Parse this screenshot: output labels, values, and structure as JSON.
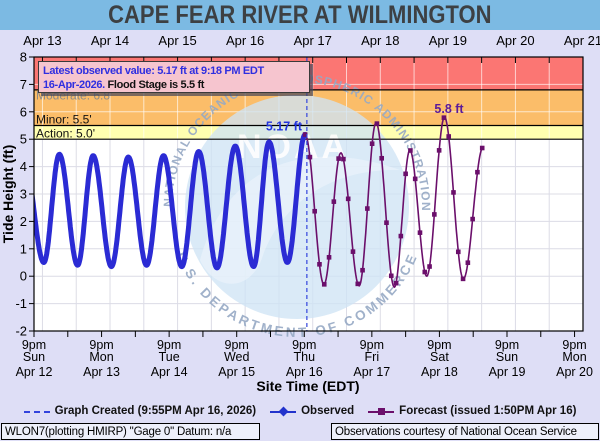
{
  "title": "CAPE FEAR RIVER AT WILMINGTON",
  "annotation": {
    "line1": "Latest observed value: 5.17 ft at 9:18 PM EDT",
    "line2_date": "16-Apr-2026.",
    "line2_flood": " Flood Stage is 5.5 ft"
  },
  "flood_labels": {
    "moderate": "Moderate: 6.8'",
    "minor": "Minor: 5.5'",
    "action": "Action: 5.0'"
  },
  "value_labels": {
    "observed_latest": "5.17 ft",
    "forecast_crest": "5.8 ft"
  },
  "axes": {
    "ylabel": "Tide Height (ft)",
    "xlabel": "Site Time (EDT)",
    "y_ticks": [
      -2,
      -1,
      0,
      1,
      2,
      3,
      4,
      5,
      6,
      7,
      8
    ],
    "top_dates": [
      "Apr 13",
      "Apr 14",
      "Apr 15",
      "Apr 16",
      "Apr 17",
      "Apr 18",
      "Apr 19",
      "Apr 20",
      "Apr 21"
    ],
    "bottom_ticks": [
      {
        "time": "9pm",
        "day": "Sun",
        "date": "Apr 12"
      },
      {
        "time": "9pm",
        "day": "Mon",
        "date": "Apr 13"
      },
      {
        "time": "9pm",
        "day": "Tue",
        "date": "Apr 14"
      },
      {
        "time": "9pm",
        "day": "Wed",
        "date": "Apr 15"
      },
      {
        "time": "9pm",
        "day": "Thu",
        "date": "Apr 16"
      },
      {
        "time": "9pm",
        "day": "Fri",
        "date": "Apr 17"
      },
      {
        "time": "9pm",
        "day": "Sat",
        "date": "Apr 18"
      },
      {
        "time": "9pm",
        "day": "Sun",
        "date": "Apr 19"
      },
      {
        "time": "9pm",
        "day": "Mon",
        "date": "Apr 20"
      }
    ]
  },
  "legend": {
    "created": "Graph Created (9:55PM Apr 16, 2026)",
    "observed": "Observed",
    "forecast": "Forecast (issued 1:50PM Apr 16)"
  },
  "footer": {
    "left": "WLON7(plotting HMIRP) \"Gage 0\" Datum: n/a",
    "right": "Observations courtesy of National Ocean Service"
  },
  "watermark": {
    "arc_top": "NATIONAL OCEANIC AND ATMOSPHERIC ADMINISTRATION",
    "arc_bottom": "U.S. DEPARTMENT OF COMMERCE",
    "center": "NOAA"
  },
  "colors": {
    "page_bg": "#dedef6",
    "title_bg": "#7cbae3",
    "red_band": "#fb7673",
    "orange_band": "#fbbd69",
    "yellow_band": "#ffffb0",
    "plot_bg": "#ffffff",
    "observed": "#2b2bd4",
    "forecast": "#6b0f6b",
    "dashed_created": "#3344dd",
    "label_observed": "#2233dd",
    "label_forecast": "#5b1a9a",
    "moderate_label": "#8a8a8a"
  },
  "chart_data": {
    "type": "line",
    "title": "Cape Fear River at Wilmington tide hydrograph",
    "x_axis": "hours since Apr 12 9:00 PM EDT",
    "x_range": [
      0,
      195
    ],
    "y_range": [
      -2,
      8
    ],
    "ylabel": "Tide Height (ft)",
    "xlabel": "Site Time (EDT)",
    "grid": true,
    "flood_stages": {
      "action": 5.0,
      "minor": 5.5,
      "moderate": 6.8
    },
    "graph_created_t": 96.92,
    "series": [
      {
        "name": "Observed",
        "style": "thick-line",
        "extremes": [
          [
            -3.5,
            4.3
          ],
          [
            3.5,
            0.5
          ],
          [
            9,
            4.45
          ],
          [
            15.5,
            0.4
          ],
          [
            21,
            4.4
          ],
          [
            27.5,
            0.35
          ],
          [
            33.5,
            4.35
          ],
          [
            40,
            0.4
          ],
          [
            46,
            4.4
          ],
          [
            52.5,
            0.35
          ],
          [
            58.5,
            4.55
          ],
          [
            65,
            0.3
          ],
          [
            71.5,
            4.75
          ],
          [
            78,
            0.35
          ],
          [
            83.5,
            4.9
          ],
          [
            90,
            0.5
          ],
          [
            96.3,
            5.17
          ]
        ]
      },
      {
        "name": "Forecast",
        "style": "line-squares",
        "extremes": [
          [
            96.3,
            5.17
          ],
          [
            103,
            -0.3
          ],
          [
            109,
            4.5
          ],
          [
            115.5,
            -0.35
          ],
          [
            121.5,
            5.6
          ],
          [
            128,
            -0.4
          ],
          [
            133.5,
            4.6
          ],
          [
            139.5,
            0.0
          ],
          [
            145.8,
            5.8
          ],
          [
            152.5,
            -0.1
          ],
          [
            159.5,
            4.7
          ]
        ]
      }
    ],
    "point_annotations": [
      {
        "text": "5.17 ft",
        "t": 96.3,
        "value": 5.17
      },
      {
        "text": "5.8 ft",
        "t": 145.8,
        "value": 5.8
      }
    ]
  }
}
